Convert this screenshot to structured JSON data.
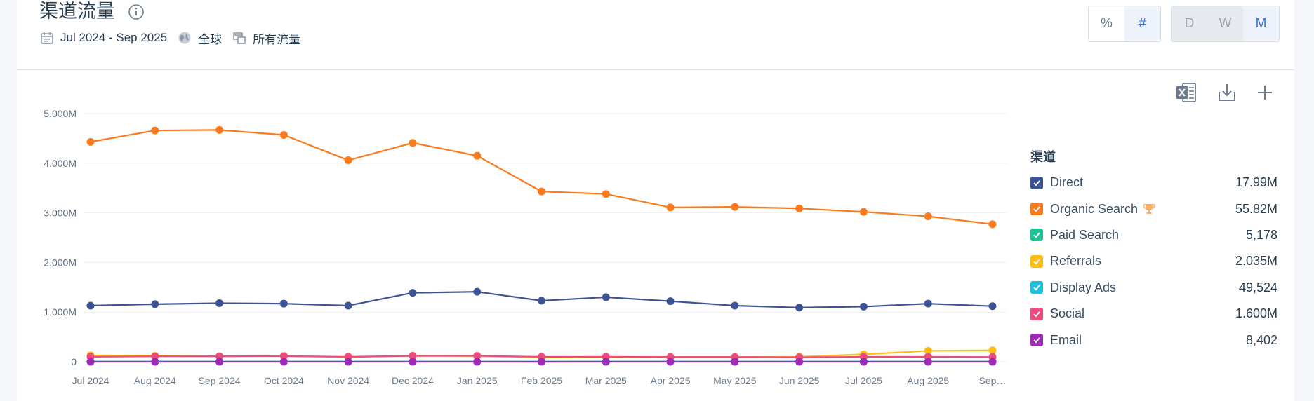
{
  "header": {
    "title": "渠道流量",
    "date_range": "Jul 2024 - Sep 2025",
    "region": "全球",
    "traffic_type": "所有流量"
  },
  "toggles": {
    "metric": [
      {
        "label": "%",
        "active": false
      },
      {
        "label": "#",
        "active": true
      }
    ],
    "granularity": [
      {
        "label": "D",
        "active": false
      },
      {
        "label": "W",
        "active": false
      },
      {
        "label": "M",
        "active": true
      }
    ]
  },
  "icons": [
    "excel-icon",
    "download-icon",
    "plus-icon",
    "info-icon",
    "calendar-icon",
    "globe-icon",
    "traffic-icon",
    "trophy-icon",
    "checkbox-icon"
  ],
  "legend": {
    "title": "渠道",
    "items": [
      {
        "name": "Direct",
        "value": "17.99M",
        "color": "#3d5393",
        "trophy": false
      },
      {
        "name": "Organic Search",
        "value": "55.82M",
        "color": "#fa7a1e",
        "trophy": true
      },
      {
        "name": "Paid Search",
        "value": "5,178",
        "color": "#1fc39a",
        "trophy": false
      },
      {
        "name": "Referrals",
        "value": "2.035M",
        "color": "#ffbd13",
        "trophy": false
      },
      {
        "name": "Display Ads",
        "value": "49,524",
        "color": "#1ec1e0",
        "trophy": false
      },
      {
        "name": "Social",
        "value": "1.600M",
        "color": "#ed4b7d",
        "trophy": false
      },
      {
        "name": "Email",
        "value": "8,402",
        "color": "#9e2bb4",
        "trophy": false
      }
    ]
  },
  "chart_data": {
    "type": "line",
    "title": "",
    "xlabel": "",
    "ylabel": "",
    "ylim": [
      0,
      5000000
    ],
    "grid": true,
    "legend_placement": "right",
    "y_ticks": [
      "0",
      "1.000M",
      "2.000M",
      "3.000M",
      "4.000M",
      "5.000M"
    ],
    "y_tick_values": [
      0,
      1000000,
      2000000,
      3000000,
      4000000,
      5000000
    ],
    "categories": [
      "Jul 2024",
      "Aug 2024",
      "Sep 2024",
      "Oct 2024",
      "Nov 2024",
      "Dec 2024",
      "Jan 2025",
      "Feb 2025",
      "Mar 2025",
      "Apr 2025",
      "May 2025",
      "Jun 2025",
      "Jul 2025",
      "Aug 2025",
      "Sep…"
    ],
    "series": [
      {
        "name": "Organic Search",
        "color": "#fa7a1e",
        "values": [
          4430000,
          4660000,
          4670000,
          4570000,
          4060000,
          4410000,
          4150000,
          3430000,
          3380000,
          3110000,
          3120000,
          3090000,
          3020000,
          2930000,
          2770000
        ]
      },
      {
        "name": "Direct",
        "color": "#3d5393",
        "values": [
          1130000,
          1160000,
          1180000,
          1170000,
          1130000,
          1390000,
          1410000,
          1230000,
          1300000,
          1220000,
          1130000,
          1090000,
          1110000,
          1170000,
          1120000
        ]
      },
      {
        "name": "Referrals",
        "color": "#ffbd13",
        "values": [
          130000,
          120000,
          110000,
          115000,
          95000,
          120000,
          115000,
          90000,
          95000,
          95000,
          95000,
          100000,
          150000,
          220000,
          230000
        ]
      },
      {
        "name": "Social",
        "color": "#ed4b7d",
        "values": [
          100000,
          110000,
          110000,
          115000,
          100000,
          120000,
          120000,
          100000,
          100000,
          95000,
          95000,
          90000,
          100000,
          100000,
          95000
        ]
      },
      {
        "name": "Display Ads",
        "color": "#1ec1e0",
        "values": [
          3500,
          3400,
          3300,
          3400,
          3300,
          3500,
          3600,
          3200,
          3300,
          3400,
          3300,
          3400,
          3600,
          3700,
          3900
        ]
      },
      {
        "name": "Paid Search",
        "color": "#1fc39a",
        "values": [
          300,
          350,
          340,
          360,
          330,
          400,
          380,
          320,
          340,
          330,
          350,
          360,
          380,
          390,
          370
        ]
      },
      {
        "name": "Email",
        "color": "#9e2bb4",
        "values": [
          600,
          580,
          560,
          590,
          540,
          620,
          610,
          520,
          540,
          560,
          530,
          550,
          570,
          560,
          610
        ]
      }
    ]
  }
}
